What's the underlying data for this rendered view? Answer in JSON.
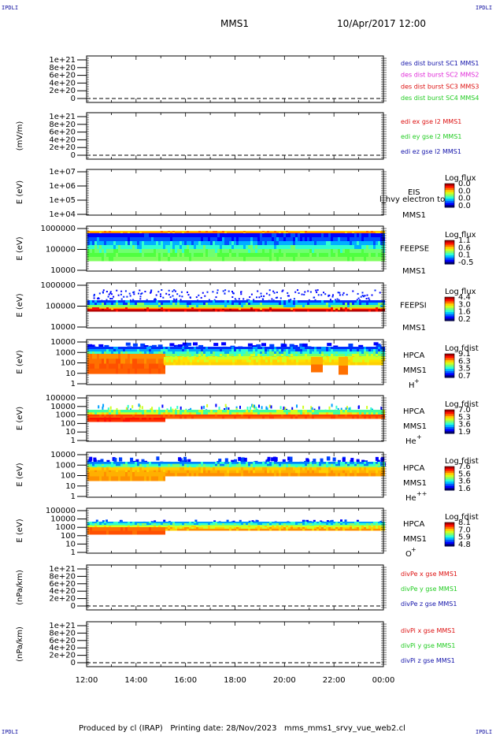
{
  "corner_tag": "IPDLI",
  "header": {
    "spacecraft": "MMS1",
    "datetime": "10/Apr/2017 12:00"
  },
  "footer": "Produced by cl (IRAP)   Printing date: 28/Nov/2023   mms_mms1_srvy_vue_web2.cl",
  "colors": {
    "purple": "#7a1fb0",
    "magenta": "#e02ad8",
    "red": "#dd1111",
    "green": "#22cc22",
    "blue": "#1212aa"
  },
  "chart_data": [
    {
      "type": "line",
      "id": "des",
      "ylabel": "",
      "yticks": [
        "0",
        "2e+20",
        "4e+20",
        "6e+20",
        "8e+20",
        "1e+21"
      ],
      "series": [
        {
          "name": "des dist burst SC1 MMS1",
          "color": "#1212aa"
        },
        {
          "name": "des dist burst SC2 MMS2",
          "color": "#e02ad8"
        },
        {
          "name": "des dist burst SC3 MMS3",
          "color": "#dd1111"
        },
        {
          "name": "des dist burst SC4 MMS4",
          "color": "#22cc22"
        }
      ]
    },
    {
      "type": "line",
      "id": "edi",
      "ylabel": "(mV/m)",
      "yticks": [
        "0",
        "2e+20",
        "4e+20",
        "6e+20",
        "8e+20",
        "1e+21"
      ],
      "series": [
        {
          "name": "edi ex gse l2 MMS1",
          "color": "#dd1111"
        },
        {
          "name": "edi ey gse l2 MMS1",
          "color": "#22cc22"
        },
        {
          "name": "edi ez gse l2 MMS1",
          "color": "#1212aa"
        }
      ]
    },
    {
      "type": "heatmap",
      "id": "eis",
      "ylabel": "E (eV)",
      "yticks": [
        "1e+04",
        "1e+05",
        "1e+06",
        "1e+07"
      ],
      "instrument": [
        "EIS",
        "MMS1"
      ],
      "overlay_note": "l_hvy electron tof",
      "colorbar": {
        "title": "Log flux",
        "ticks": [
          "0.0",
          "0.0",
          "0.0",
          "0.0"
        ]
      }
    },
    {
      "type": "heatmap",
      "id": "feepse",
      "ylabel": "E (eV)",
      "yticks": [
        "10000",
        "100000",
        "1000000"
      ],
      "instrument": [
        "FEEPSE",
        "MMS1"
      ],
      "colorbar": {
        "title": "Log flux",
        "ticks": [
          "1.1",
          "0.6",
          "0.1",
          "-0.5"
        ]
      }
    },
    {
      "type": "heatmap",
      "id": "feepsi",
      "ylabel": "E (eV)",
      "yticks": [
        "10000",
        "100000",
        "1000000"
      ],
      "instrument": [
        "FEEPSI",
        "MMS1"
      ],
      "colorbar": {
        "title": "Log flux",
        "ticks": [
          "4.4",
          "3.0",
          "1.6",
          "0.2"
        ]
      }
    },
    {
      "type": "heatmap",
      "id": "hpca_h",
      "ylabel": "E (eV)",
      "yticks": [
        "1",
        "10",
        "100",
        "1000",
        "10000"
      ],
      "instrument": [
        "HPCA",
        "MMS1",
        "H",
        "+"
      ],
      "colorbar": {
        "title": "Log fdist",
        "ticks": [
          "9.1",
          "6.3",
          "3.5",
          "0.7"
        ]
      }
    },
    {
      "type": "heatmap",
      "id": "hpca_he1",
      "ylabel": "E (eV)",
      "yticks": [
        "1",
        "10",
        "100",
        "1000",
        "10000",
        "100000"
      ],
      "instrument": [
        "HPCA",
        "MMS1",
        "He",
        "+"
      ],
      "colorbar": {
        "title": "Log fdist",
        "ticks": [
          "7.0",
          "5.3",
          "3.6",
          "1.9"
        ]
      }
    },
    {
      "type": "heatmap",
      "id": "hpca_he2",
      "ylabel": "E (eV)",
      "yticks": [
        "1",
        "10",
        "100",
        "1000",
        "10000"
      ],
      "instrument": [
        "HPCA",
        "MMS1",
        "He",
        "++"
      ],
      "colorbar": {
        "title": "Log fdist",
        "ticks": [
          "7.6",
          "5.6",
          "3.6",
          "1.6"
        ]
      }
    },
    {
      "type": "heatmap",
      "id": "hpca_o",
      "ylabel": "E (eV)",
      "yticks": [
        "1",
        "10",
        "100",
        "1000",
        "10000",
        "100000"
      ],
      "instrument": [
        "HPCA",
        "MMS1",
        "O",
        "+"
      ],
      "colorbar": {
        "title": "Log fdist",
        "ticks": [
          "8.1",
          "7.0",
          "5.9",
          "4.8"
        ]
      }
    },
    {
      "type": "line",
      "id": "divpe",
      "ylabel": "(nPa/km)",
      "yticks": [
        "0",
        "2e+20",
        "4e+20",
        "6e+20",
        "8e+20",
        "1e+21"
      ],
      "series": [
        {
          "name": "divPe x gse MMS1",
          "color": "#dd1111"
        },
        {
          "name": "divPe y gse MMS1",
          "color": "#22cc22"
        },
        {
          "name": "divPe z gse MMS1",
          "color": "#1212aa"
        }
      ]
    },
    {
      "type": "line",
      "id": "divpi",
      "ylabel": "(nPa/km)",
      "yticks": [
        "0",
        "2e+20",
        "4e+20",
        "6e+20",
        "8e+20",
        "1e+21"
      ],
      "series": [
        {
          "name": "divPi x gse MMS1",
          "color": "#dd1111"
        },
        {
          "name": "divPi y gse MMS1",
          "color": "#22cc22"
        },
        {
          "name": "divPi z gse MMS1",
          "color": "#1212aa"
        }
      ]
    }
  ],
  "xaxis": {
    "ticks": [
      "12:00",
      "14:00",
      "16:00",
      "18:00",
      "20:00",
      "22:00",
      "00:00"
    ]
  }
}
